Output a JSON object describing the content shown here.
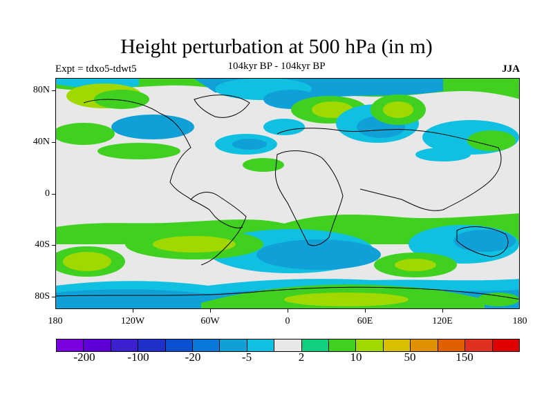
{
  "header": {
    "title": "Height perturbation at 500 hPa (in m)",
    "experiment": "Expt = tdxo5-tdwt5",
    "period": "104kyr BP - 104kyr BP",
    "season": "JJA"
  },
  "map": {
    "projection": "cylindrical-equidistant",
    "lat_labels": [
      "80N",
      "40N",
      "0",
      "40S",
      "80S"
    ],
    "lon_labels": [
      "180",
      "120W",
      "60W",
      "0",
      "60E",
      "120E",
      "180"
    ]
  },
  "colorbar": {
    "colors": [
      "#7a00e0",
      "#5e00d8",
      "#3c20d0",
      "#1e30c8",
      "#0a50d0",
      "#0a78d8",
      "#10a0d8",
      "#10c0e0",
      "#e8e8e8",
      "#10d080",
      "#40d020",
      "#a0d800",
      "#d8c000",
      "#e09000",
      "#e06000",
      "#e03020",
      "#e00000"
    ],
    "labels": [
      "-200",
      "-100",
      "-20",
      "-5",
      "2",
      "10",
      "50",
      "150"
    ]
  }
}
